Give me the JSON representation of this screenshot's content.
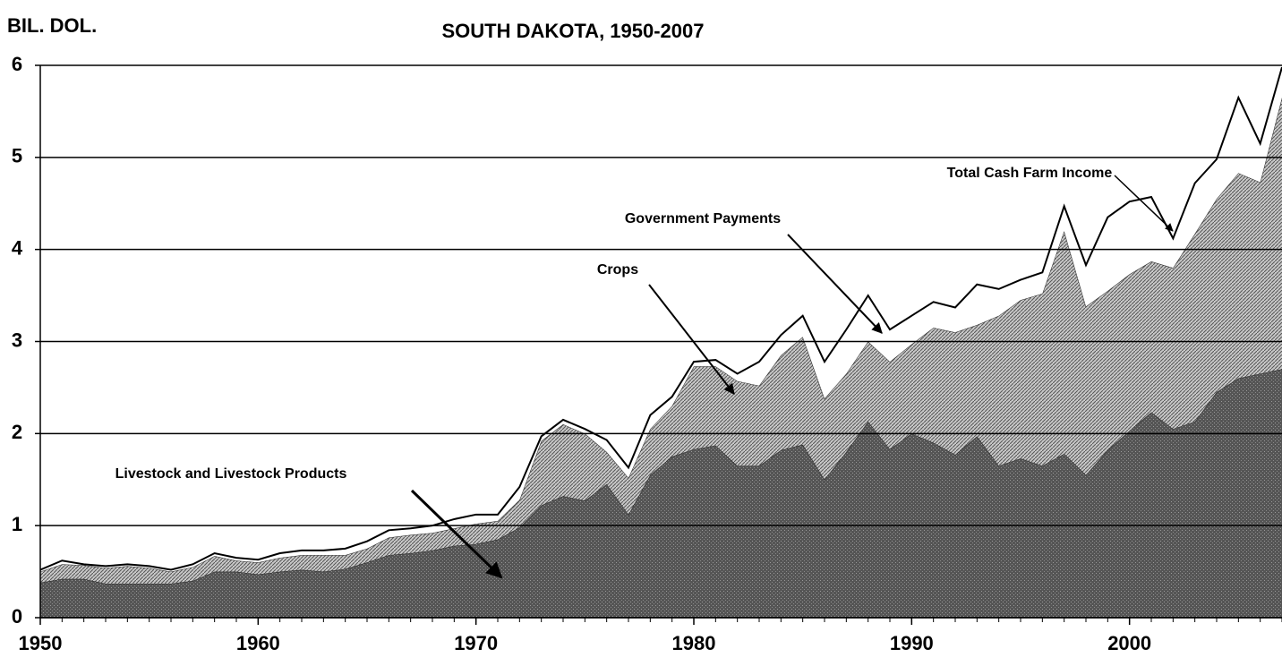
{
  "chart_data": {
    "type": "stacked_area",
    "title": "SOUTH DAKOTA, 1950-2007",
    "y_label": "BIL. DOL.",
    "x": [
      1950,
      1951,
      1952,
      1953,
      1954,
      1955,
      1956,
      1957,
      1958,
      1959,
      1960,
      1961,
      1962,
      1963,
      1964,
      1965,
      1966,
      1967,
      1968,
      1969,
      1970,
      1971,
      1972,
      1973,
      1974,
      1975,
      1976,
      1977,
      1978,
      1979,
      1980,
      1981,
      1982,
      1983,
      1984,
      1985,
      1986,
      1987,
      1988,
      1989,
      1990,
      1991,
      1992,
      1993,
      1994,
      1995,
      1996,
      1997,
      1998,
      1999,
      2000,
      2001,
      2002,
      2003,
      2004,
      2005,
      2006,
      2007
    ],
    "series": [
      {
        "name": "Livestock and Livestock Products",
        "color": "#4a4a4a",
        "values": [
          0.38,
          0.42,
          0.42,
          0.37,
          0.37,
          0.37,
          0.37,
          0.4,
          0.5,
          0.5,
          0.47,
          0.5,
          0.52,
          0.5,
          0.53,
          0.6,
          0.68,
          0.7,
          0.73,
          0.78,
          0.8,
          0.85,
          0.98,
          1.22,
          1.32,
          1.27,
          1.45,
          1.12,
          1.55,
          1.75,
          1.83,
          1.87,
          1.65,
          1.65,
          1.82,
          1.88,
          1.5,
          1.8,
          2.13,
          1.83,
          2.0,
          1.9,
          1.77,
          1.97,
          1.65,
          1.73,
          1.65,
          1.78,
          1.55,
          1.82,
          2.03,
          2.23,
          2.05,
          2.13,
          2.45,
          2.6,
          2.65,
          2.7
        ]
      },
      {
        "name": "Crops",
        "color": "#a8a8a8",
        "values": [
          0.12,
          0.16,
          0.15,
          0.17,
          0.19,
          0.17,
          0.13,
          0.15,
          0.17,
          0.12,
          0.13,
          0.15,
          0.16,
          0.18,
          0.15,
          0.15,
          0.19,
          0.2,
          0.19,
          0.19,
          0.22,
          0.2,
          0.3,
          0.7,
          0.78,
          0.73,
          0.35,
          0.4,
          0.5,
          0.55,
          0.9,
          0.86,
          0.92,
          0.87,
          1.03,
          1.17,
          0.88,
          0.85,
          0.87,
          0.95,
          0.97,
          1.25,
          1.33,
          1.21,
          1.63,
          1.72,
          1.87,
          2.42,
          1.83,
          1.73,
          1.7,
          1.64,
          1.75,
          2.04,
          2.1,
          2.23,
          2.08,
          2.95
        ]
      },
      {
        "name": "Government Payments",
        "color": "#ffffff",
        "values": [
          0.02,
          0.04,
          0.01,
          0.02,
          0.02,
          0.02,
          0.02,
          0.03,
          0.03,
          0.03,
          0.03,
          0.05,
          0.05,
          0.05,
          0.07,
          0.08,
          0.08,
          0.07,
          0.08,
          0.1,
          0.1,
          0.07,
          0.14,
          0.05,
          0.05,
          0.05,
          0.13,
          0.11,
          0.15,
          0.1,
          0.05,
          0.07,
          0.08,
          0.26,
          0.22,
          0.23,
          0.4,
          0.48,
          0.5,
          0.35,
          0.31,
          0.28,
          0.27,
          0.44,
          0.29,
          0.22,
          0.23,
          0.27,
          0.45,
          0.8,
          0.79,
          0.7,
          0.32,
          0.55,
          0.43,
          0.82,
          0.42,
          0.33
        ]
      }
    ],
    "total_label": "Total Cash Farm Income",
    "xlim": [
      1950,
      2007
    ],
    "xticks": [
      1950,
      1960,
      1970,
      1980,
      1990,
      2000
    ],
    "ylim": [
      0,
      6
    ],
    "yticks": [
      0,
      1,
      2,
      3,
      4,
      5,
      6
    ],
    "grid": true
  }
}
